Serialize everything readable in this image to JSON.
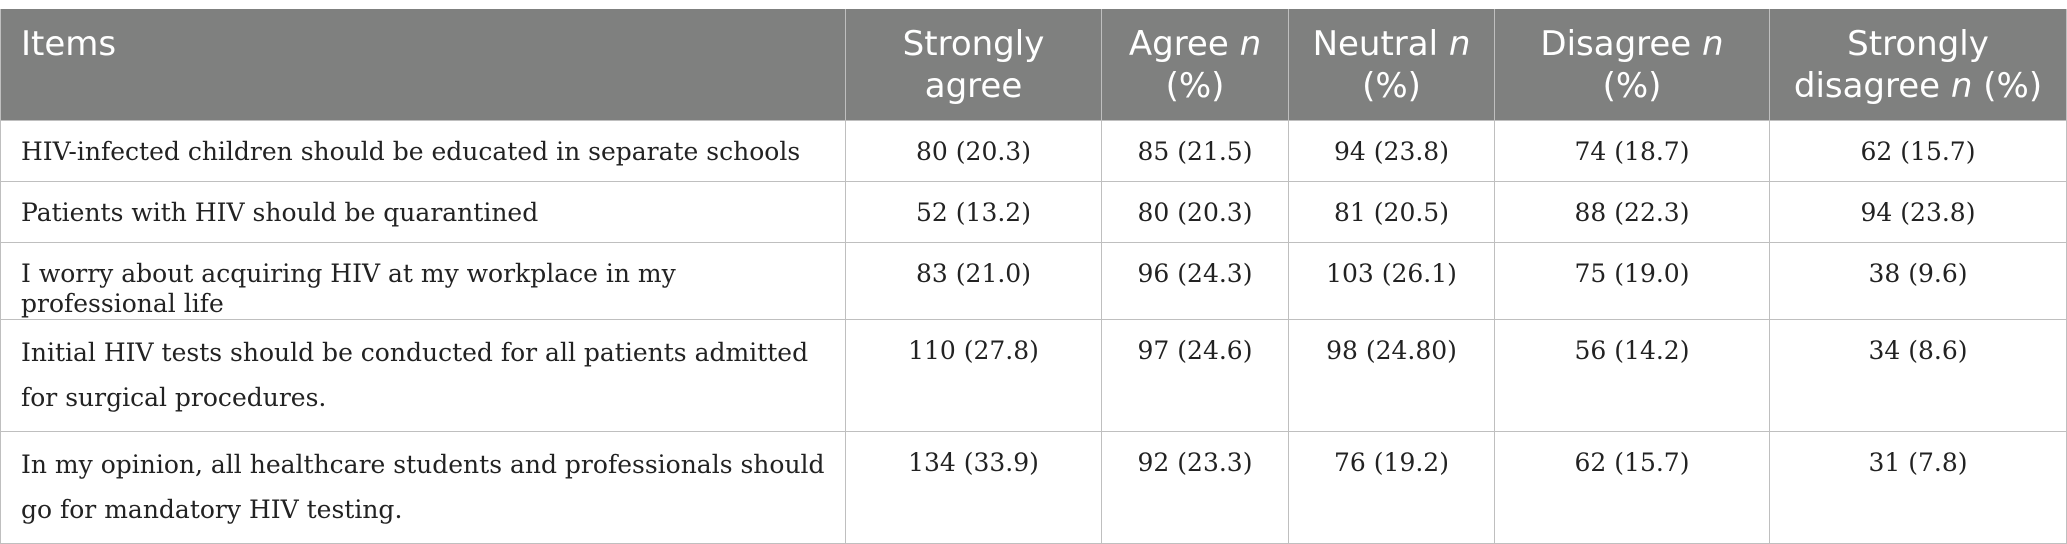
{
  "table": {
    "headers": [
      {
        "main": "Items",
        "suffix": ""
      },
      {
        "main": "Strongly agree",
        "suffix": ""
      },
      {
        "main": "Agree ",
        "suffix": "n",
        "tail": " (%)"
      },
      {
        "main": "Neutral ",
        "suffix": "n",
        "tail": " (%)"
      },
      {
        "main": "Disagree ",
        "suffix": "n",
        "tail": " (%)"
      },
      {
        "main": "Strongly disagree ",
        "suffix": "n",
        "tail": " (%)"
      }
    ],
    "rows": [
      {
        "item": "HIV-infected children should be educated in separate schools",
        "strongly_agree": "80 (20.3)",
        "agree": "85 (21.5)",
        "neutral": "94 (23.8)",
        "disagree": "74 (18.7)",
        "strongly_disagree": "62 (15.7)"
      },
      {
        "item": "Patients with HIV should be quarantined",
        "strongly_agree": "52 (13.2)",
        "agree": "80 (20.3)",
        "neutral": "81 (20.5)",
        "disagree": "88 (22.3)",
        "strongly_disagree": "94 (23.8)"
      },
      {
        "item": "I worry about acquiring HIV at my workplace in my professional life",
        "strongly_agree": "83 (21.0)",
        "agree": "96 (24.3)",
        "neutral": "103 (26.1)",
        "disagree": "75 (19.0)",
        "strongly_disagree": "38 (9.6)"
      },
      {
        "item": "Initial HIV tests should be conducted for all patients admitted for surgical procedures.",
        "strongly_agree": "110 (27.8)",
        "agree": "97 (24.6)",
        "neutral": "98 (24.80)",
        "disagree": "56 (14.2)",
        "strongly_disagree": "34 (8.6)"
      },
      {
        "item": "In my opinion, all healthcare students and professionals should go for mandatory HIV testing.",
        "strongly_agree": "134 (33.9)",
        "agree": "92 (23.3)",
        "neutral": "76 (19.2)",
        "disagree": "62 (15.7)",
        "strongly_disagree": "31 (7.8)"
      }
    ]
  },
  "colors": {
    "header_bg": "#7f807f",
    "header_text": "#ffffff",
    "grid": "#bfbfbf",
    "body_text": "#222222"
  }
}
